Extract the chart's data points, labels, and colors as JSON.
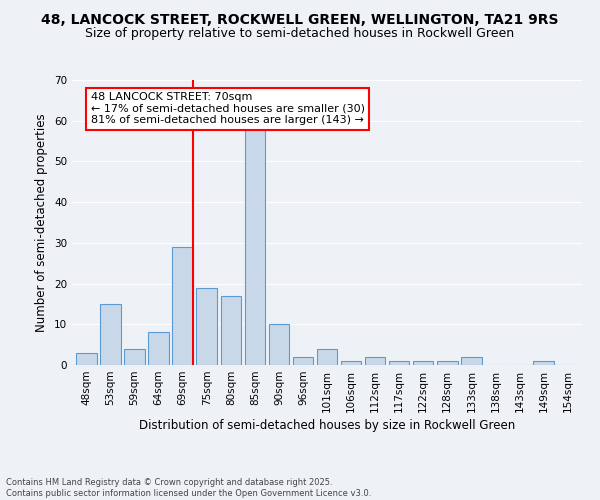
{
  "title": "48, LANCOCK STREET, ROCKWELL GREEN, WELLINGTON, TA21 9RS",
  "subtitle": "Size of property relative to semi-detached houses in Rockwell Green",
  "xlabel": "Distribution of semi-detached houses by size in Rockwell Green",
  "ylabel": "Number of semi-detached properties",
  "categories": [
    "48sqm",
    "53sqm",
    "59sqm",
    "64sqm",
    "69sqm",
    "75sqm",
    "80sqm",
    "85sqm",
    "90sqm",
    "96sqm",
    "101sqm",
    "106sqm",
    "112sqm",
    "117sqm",
    "122sqm",
    "128sqm",
    "133sqm",
    "138sqm",
    "143sqm",
    "149sqm",
    "154sqm"
  ],
  "values": [
    3,
    15,
    4,
    8,
    29,
    19,
    17,
    58,
    10,
    2,
    4,
    1,
    2,
    1,
    1,
    1,
    2,
    0,
    0,
    1,
    0
  ],
  "bar_color": "#c8d8e8",
  "bar_edge_color": "#5b9bd5",
  "pct_smaller": 17,
  "count_smaller": 30,
  "pct_larger": 81,
  "count_larger": 143,
  "ylim": [
    0,
    70
  ],
  "yticks": [
    0,
    10,
    20,
    30,
    40,
    50,
    60,
    70
  ],
  "background_color": "#eef2f7",
  "grid_color": "#ffffff",
  "footer": "Contains HM Land Registry data © Crown copyright and database right 2025.\nContains public sector information licensed under the Open Government Licence v3.0.",
  "title_fontsize": 10,
  "subtitle_fontsize": 9,
  "axis_label_fontsize": 8.5,
  "tick_fontsize": 7.5,
  "annotation_fontsize": 8,
  "footer_fontsize": 6
}
